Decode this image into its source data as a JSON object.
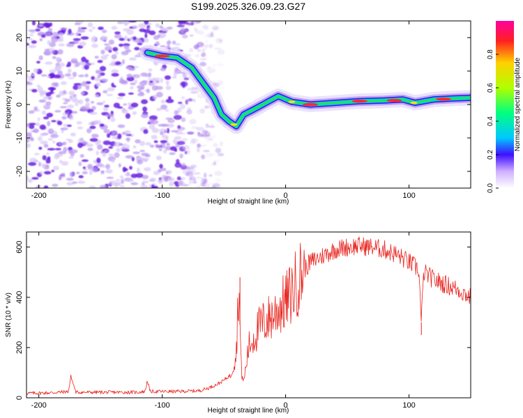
{
  "title": "S199.2025.326.09.23.G27",
  "colors": {
    "snr_line": "#e8221c",
    "noise": "#8a3ee0",
    "axis": "#000000"
  },
  "chart_data": [
    {
      "type": "heatmap",
      "title": "",
      "xlabel": "Height of straight line (km)",
      "ylabel": "Frequency (Hz)",
      "xlim": [
        -210,
        150
      ],
      "ylim": [
        -25,
        25
      ],
      "xticks": [
        -200,
        -100,
        0,
        100
      ],
      "yticks": [
        -20,
        -10,
        0,
        10,
        20
      ],
      "colorbar": {
        "label": "Normalized spectral amplitude",
        "range": [
          0,
          1
        ],
        "ticks": [
          "0.0",
          "0.2",
          "0.4",
          "0.6",
          "0.8"
        ]
      },
      "noise_region_x": [
        -210,
        -62
      ],
      "ridge": [
        {
          "x": -112,
          "y": 15.5
        },
        {
          "x": -100,
          "y": 14.5
        },
        {
          "x": -88,
          "y": 14
        },
        {
          "x": -76,
          "y": 11
        },
        {
          "x": -66,
          "y": 6
        },
        {
          "x": -58,
          "y": 2
        },
        {
          "x": -52,
          "y": -3
        },
        {
          "x": -46,
          "y": -5
        },
        {
          "x": -40,
          "y": -6.5
        },
        {
          "x": -34,
          "y": -3
        },
        {
          "x": -26,
          "y": -1.5
        },
        {
          "x": -16,
          "y": 0.5
        },
        {
          "x": -6,
          "y": 2.5
        },
        {
          "x": 5,
          "y": 0.8
        },
        {
          "x": 20,
          "y": 0
        },
        {
          "x": 40,
          "y": 0.5
        },
        {
          "x": 60,
          "y": 1
        },
        {
          "x": 80,
          "y": 1.2
        },
        {
          "x": 95,
          "y": 1.5
        },
        {
          "x": 105,
          "y": 0.5
        },
        {
          "x": 120,
          "y": 1.5
        },
        {
          "x": 135,
          "y": 1.8
        },
        {
          "x": 150,
          "y": 2
        }
      ]
    },
    {
      "type": "line",
      "title": "",
      "xlabel": "Height of straight line (km)",
      "ylabel": "SNR (10 * v/v)",
      "xlim": [
        -210,
        150
      ],
      "ylim": [
        0,
        660
      ],
      "xticks": [
        -200,
        -100,
        0,
        100
      ],
      "yticks": [
        0,
        200,
        400,
        600
      ],
      "series": [
        {
          "name": "SNR",
          "x": [
            -210,
            -190,
            -176,
            -174,
            -170,
            -150,
            -120,
            -114,
            -112,
            -110,
            -90,
            -70,
            -62,
            -55,
            -50,
            -45,
            -40,
            -38,
            -36,
            -34,
            -30,
            -25,
            -20,
            -15,
            -10,
            -5,
            0,
            5,
            10,
            15,
            20,
            30,
            40,
            50,
            60,
            70,
            80,
            90,
            100,
            108,
            110,
            112,
            120,
            130,
            140,
            150
          ],
          "values": [
            18,
            20,
            25,
            85,
            22,
            22,
            22,
            25,
            70,
            25,
            25,
            28,
            40,
            55,
            70,
            90,
            180,
            460,
            120,
            60,
            200,
            250,
            290,
            310,
            330,
            360,
            380,
            420,
            470,
            510,
            540,
            565,
            590,
            600,
            605,
            600,
            590,
            570,
            540,
            510,
            300,
            500,
            470,
            450,
            430,
            400
          ]
        }
      ],
      "annotations": [
        {
          "x": -37,
          "value": 480,
          "label": ""
        },
        {
          "x": 110,
          "value": 250,
          "label": ""
        }
      ]
    }
  ]
}
